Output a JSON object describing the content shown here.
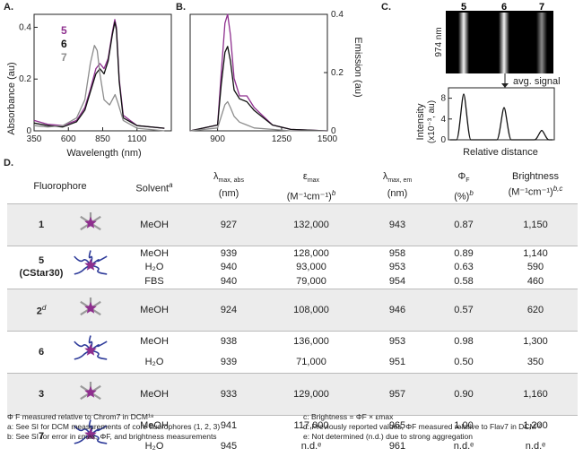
{
  "panels": {
    "a": {
      "label": "A.",
      "ylabel": "Absorbance (au)",
      "xlabel": "Wavelength (nm)",
      "xticks": [
        "350",
        "600",
        "850",
        "1100"
      ],
      "yticks": [
        "0",
        "0.2",
        "0.4"
      ],
      "legend": [
        {
          "name": "5",
          "color": "#8e2f8e"
        },
        {
          "name": "6",
          "color": "#111111"
        },
        {
          "name": "7",
          "color": "#8c8c8c"
        }
      ]
    },
    "b": {
      "label": "B.",
      "ylabel": "Emission (au)",
      "xticks": [
        "900",
        "1250",
        "1500"
      ],
      "yticks": [
        "0",
        "0.2",
        "0.4"
      ]
    },
    "c": {
      "label": "C.",
      "lanes": [
        "5",
        "6",
        "7"
      ],
      "wavelength": "974 nm",
      "annotation": "avg. signal",
      "ylabel_line1": "Intensity",
      "ylabel_line2": "(x10⁻³, au)",
      "yticks": [
        "0",
        "4",
        "8"
      ],
      "xlabel": "Relative distance"
    },
    "d": {
      "label": "D."
    }
  },
  "chart_data": [
    {
      "type": "line",
      "title": "",
      "xlabel": "Wavelength (nm)",
      "ylabel": "Absorbance (au)",
      "xlim": [
        350,
        1350
      ],
      "ylim": [
        0,
        0.45
      ],
      "series": [
        {
          "name": "5",
          "color": "#8e2f8e",
          "x": [
            350,
            450,
            560,
            660,
            720,
            760,
            800,
            830,
            860,
            890,
            920,
            938,
            950,
            970,
            1000,
            1100,
            1300
          ],
          "y": [
            0.04,
            0.025,
            0.02,
            0.04,
            0.09,
            0.16,
            0.24,
            0.26,
            0.24,
            0.28,
            0.38,
            0.43,
            0.4,
            0.2,
            0.06,
            0.02,
            0.01
          ]
        },
        {
          "name": "6",
          "color": "#111111",
          "x": [
            350,
            450,
            560,
            660,
            720,
            760,
            800,
            830,
            860,
            890,
            920,
            938,
            950,
            970,
            1000,
            1100,
            1300
          ],
          "y": [
            0.03,
            0.02,
            0.015,
            0.035,
            0.08,
            0.15,
            0.22,
            0.24,
            0.22,
            0.27,
            0.37,
            0.42,
            0.39,
            0.19,
            0.05,
            0.02,
            0.01
          ]
        },
        {
          "name": "7",
          "color": "#8c8c8c",
          "x": [
            350,
            450,
            560,
            660,
            720,
            760,
            790,
            810,
            830,
            860,
            900,
            940,
            960,
            1000,
            1100,
            1300
          ],
          "y": [
            0.02,
            0.015,
            0.02,
            0.05,
            0.12,
            0.26,
            0.33,
            0.31,
            0.22,
            0.12,
            0.1,
            0.14,
            0.11,
            0.04,
            0.01,
            0.0
          ]
        }
      ]
    },
    {
      "type": "line",
      "title": "",
      "xlabel": "Wavelength (nm)",
      "ylabel": "Emission (au)",
      "xlim": [
        750,
        1500
      ],
      "ylim": [
        0,
        0.4
      ],
      "series": [
        {
          "name": "5",
          "color": "#8e2f8e",
          "x": [
            750,
            900,
            920,
            940,
            955,
            970,
            990,
            1020,
            1060,
            1100,
            1200,
            1300,
            1500
          ],
          "y": [
            0,
            0.02,
            0.2,
            0.37,
            0.4,
            0.33,
            0.18,
            0.12,
            0.12,
            0.08,
            0.02,
            0.005,
            0
          ]
        },
        {
          "name": "6",
          "color": "#111111",
          "x": [
            750,
            900,
            920,
            940,
            955,
            970,
            990,
            1020,
            1060,
            1100,
            1200,
            1300,
            1500
          ],
          "y": [
            0,
            0.02,
            0.16,
            0.27,
            0.29,
            0.24,
            0.14,
            0.11,
            0.1,
            0.07,
            0.02,
            0.005,
            0
          ]
        },
        {
          "name": "7",
          "color": "#8c8c8c",
          "x": [
            750,
            900,
            920,
            940,
            955,
            970,
            990,
            1020,
            1060,
            1100,
            1200,
            1300,
            1500
          ],
          "y": [
            0,
            0.01,
            0.05,
            0.09,
            0.1,
            0.08,
            0.05,
            0.03,
            0.02,
            0.01,
            0.005,
            0,
            0
          ]
        }
      ]
    },
    {
      "type": "line",
      "title": "",
      "xlabel": "Relative distance",
      "ylabel": "Intensity (x10⁻³, au)",
      "ylim": [
        0,
        10
      ],
      "series": [
        {
          "name": "avg. signal",
          "color": "#111111",
          "peaks": [
            {
              "label": "5",
              "height": 8.8
            },
            {
              "label": "6",
              "height": 6.2
            },
            {
              "label": "7",
              "height": 1.8
            }
          ]
        }
      ]
    }
  ],
  "table": {
    "headers": {
      "fluorophore": "Fluorophore",
      "solvent": "Solvent",
      "solvent_sup": "a",
      "labs_a": "λ",
      "labs_sub": "max, abs",
      "labs_unit": "(nm)",
      "eps_a": "ε",
      "eps_sub": "max",
      "eps_unit": "(M⁻¹cm⁻¹)",
      "eps_sup": "b",
      "lem_a": "λ",
      "lem_sub": "max, em",
      "lem_unit": "(nm)",
      "phi_a": "Φ",
      "phi_sub": "F",
      "phi_unit": "(%)",
      "phi_sup": "b",
      "bright_a": "Brightness",
      "bright_unit": "(M⁻¹cm⁻¹)",
      "bright_sup": "b,c"
    },
    "rows": [
      {
        "compound": "1",
        "sub": "",
        "sup": "",
        "shade": true,
        "entries": [
          [
            "MeOH",
            "927",
            "132,000",
            "943",
            "0.87",
            "1,150"
          ]
        ]
      },
      {
        "compound": "5",
        "sub": "(CStar30)",
        "sup": "",
        "shade": false,
        "entries": [
          [
            "MeOH",
            "939",
            "128,000",
            "958",
            "0.89",
            "1,140"
          ],
          [
            "H₂O",
            "940",
            "93,000",
            "953",
            "0.63",
            "590"
          ],
          [
            "FBS",
            "940",
            "79,000",
            "954",
            "0.58",
            "460"
          ]
        ]
      },
      {
        "compound": "2",
        "sub": "",
        "sup": "d",
        "shade": true,
        "entries": [
          [
            "MeOH",
            "924",
            "108,000",
            "946",
            "0.57",
            "620"
          ]
        ]
      },
      {
        "compound": "6",
        "sub": "",
        "sup": "",
        "shade": false,
        "entries": [
          [
            "MeOH",
            "938",
            "136,000",
            "953",
            "0.98",
            "1,300"
          ],
          [
            "H₂O",
            "939",
            "71,000",
            "951",
            "0.50",
            "350"
          ]
        ]
      },
      {
        "compound": "3",
        "sub": "",
        "sup": "",
        "shade": true,
        "entries": [
          [
            "MeOH",
            "933",
            "129,000",
            "957",
            "0.90",
            "1,160"
          ]
        ]
      },
      {
        "compound": "7",
        "sub": "",
        "sup": "",
        "shade": false,
        "entries": [
          [
            "MeOH",
            "941",
            "117,000",
            "965",
            "1.00",
            "1,200"
          ],
          [
            "H₂O",
            "945",
            "n.d.ᵉ",
            "961",
            "n.d.ᵉ",
            "n.d.ᵉ"
          ]
        ]
      }
    ]
  },
  "footnotes": {
    "left": [
      "Φ F measured relative to Chrom7 in DCM¹⁸",
      "a: See SI for DCM measurements of core fluorophores (1, 2, 3)",
      "b: See SI for error in εmax, ΦF, and brightness measurements"
    ],
    "right": [
      "c: Brightness = ΦF × εmax",
      "d: Previously reported values, ΦF measured relative to Flav7 in DCM³²",
      "e: Not determined (n.d.) due to strong aggregation"
    ]
  }
}
